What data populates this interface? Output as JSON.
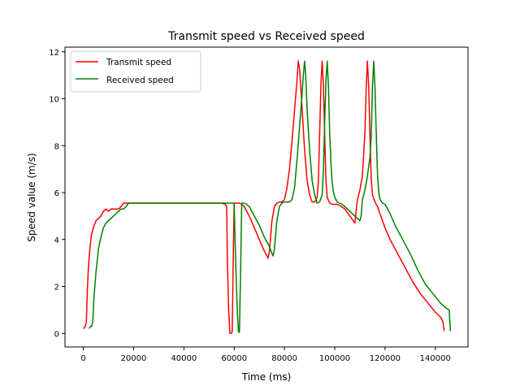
{
  "chart_data": {
    "type": "line",
    "title": "Transmit speed vs Received speed",
    "xlabel": "Time (ms)",
    "ylabel": "Speed value (m/s)",
    "xlim": [
      -7300,
      153000
    ],
    "ylim": [
      -0.58,
      12.2
    ],
    "xticks": [
      0,
      20000,
      40000,
      60000,
      80000,
      100000,
      120000,
      140000
    ],
    "yticks": [
      0,
      2,
      4,
      6,
      8,
      10,
      12
    ],
    "grid": false,
    "legend_position": "top-left",
    "series": [
      {
        "name": "Transmit speed",
        "color": "#ff0000",
        "x": [
          0,
          800,
          1200,
          1600,
          2000,
          2600,
          3200,
          4000,
          5000,
          6000,
          7000,
          8000,
          9000,
          10000,
          11000,
          12000,
          13000,
          14000,
          15000,
          16000,
          17000,
          20000,
          30000,
          40000,
          50000,
          55000,
          56500,
          57000,
          57300,
          57800,
          58300,
          58800,
          59200,
          59600,
          60000,
          61000,
          62000,
          63000,
          64000,
          65000,
          66000,
          68000,
          70000,
          72000,
          73000,
          73500,
          74000,
          75000,
          76000,
          77000,
          78000,
          79000,
          80000,
          81000,
          82000,
          83000,
          84000,
          85000,
          85500,
          86000,
          87000,
          88000,
          89000,
          90000,
          91000,
          92000,
          93000,
          93500,
          94000,
          94500,
          95000,
          95500,
          96000,
          96500,
          97000,
          98000,
          99000,
          100000,
          101000,
          102000,
          104000,
          106000,
          107000,
          108000,
          108500,
          109000,
          110000,
          111000,
          112000,
          112500,
          113000,
          113500,
          114000,
          114500,
          115000,
          116000,
          117000,
          118000,
          119000,
          120000,
          122000,
          125000,
          128000,
          131000,
          134000,
          137000,
          140000,
          142000,
          143000,
          143500
        ],
        "y": [
          0.2,
          0.3,
          0.5,
          1.8,
          2.8,
          3.6,
          4.2,
          4.5,
          4.8,
          4.9,
          5.0,
          5.2,
          5.3,
          5.2,
          5.3,
          5.3,
          5.3,
          5.3,
          5.4,
          5.55,
          5.55,
          5.55,
          5.55,
          5.55,
          5.55,
          5.55,
          5.5,
          5.4,
          3.0,
          1.0,
          0.0,
          0.0,
          0.05,
          3.0,
          5.55,
          5.55,
          5.55,
          5.5,
          5.4,
          5.2,
          5.0,
          4.5,
          4.0,
          3.5,
          3.3,
          3.2,
          3.5,
          4.8,
          5.4,
          5.55,
          5.6,
          5.6,
          5.7,
          6.2,
          7.0,
          8.2,
          9.5,
          10.8,
          11.6,
          11.3,
          9.6,
          7.8,
          6.5,
          5.9,
          5.6,
          5.6,
          5.8,
          6.5,
          8.5,
          10.6,
          11.6,
          10.5,
          8.5,
          6.5,
          5.8,
          5.55,
          5.5,
          5.5,
          5.5,
          5.45,
          5.3,
          5.0,
          4.85,
          4.7,
          5.2,
          5.7,
          6.1,
          6.7,
          8.5,
          10.5,
          11.6,
          10.5,
          8.5,
          6.6,
          5.9,
          5.6,
          5.4,
          5.1,
          4.8,
          4.5,
          4.0,
          3.4,
          2.8,
          2.2,
          1.7,
          1.3,
          0.9,
          0.7,
          0.5,
          0.1
        ]
      },
      {
        "name": "Received speed",
        "color": "#008000",
        "x": [
          2400,
          2800,
          3300,
          3800,
          4200,
          5000,
          6000,
          7000,
          8000,
          9000,
          10000,
          11000,
          12000,
          13000,
          14000,
          15000,
          16000,
          17000,
          18000,
          20000,
          30000,
          40000,
          50000,
          56000,
          57500,
          58500,
          59000,
          59600,
          60000,
          60600,
          61200,
          61700,
          62100,
          62600,
          63000,
          64000,
          65000,
          66000,
          67000,
          68000,
          70000,
          72000,
          74000,
          75000,
          75500,
          76000,
          77000,
          78000,
          79000,
          80000,
          81000,
          82000,
          83000,
          84000,
          85000,
          86000,
          87000,
          87500,
          88000,
          88500,
          89000,
          90000,
          91000,
          92000,
          93000,
          94000,
          95000,
          95500,
          96000,
          96500,
          97000,
          97500,
          98000,
          98500,
          99000,
          99500,
          100000,
          101000,
          102000,
          103000,
          104000,
          106000,
          108000,
          109000,
          110000,
          110500,
          111000,
          112000,
          113000,
          114000,
          114500,
          115000,
          115500,
          116000,
          116500,
          117000,
          117500,
          118000,
          119000,
          120000,
          121000,
          122000,
          124000,
          127000,
          130000,
          133000,
          136000,
          139000,
          142000,
          144000,
          145500,
          146000
        ],
        "y": [
          0.2,
          0.3,
          0.3,
          0.5,
          1.5,
          2.6,
          3.6,
          4.1,
          4.5,
          4.7,
          4.8,
          4.9,
          5.0,
          5.1,
          5.2,
          5.3,
          5.3,
          5.4,
          5.55,
          5.55,
          5.55,
          5.55,
          5.55,
          5.55,
          5.55,
          5.55,
          5.55,
          5.55,
          5.5,
          3.0,
          1.0,
          0.05,
          0.05,
          3.0,
          5.55,
          5.55,
          5.5,
          5.4,
          5.2,
          5.0,
          4.6,
          4.1,
          3.7,
          3.4,
          3.3,
          3.6,
          4.8,
          5.4,
          5.55,
          5.6,
          5.6,
          5.6,
          5.7,
          6.2,
          7.4,
          8.8,
          10.2,
          11.0,
          11.6,
          10.9,
          9.5,
          7.8,
          6.5,
          5.9,
          5.55,
          5.6,
          5.9,
          7.0,
          9.0,
          10.8,
          11.6,
          10.5,
          8.5,
          7.2,
          6.4,
          6.0,
          5.8,
          5.6,
          5.55,
          5.5,
          5.4,
          5.2,
          5.0,
          4.9,
          4.8,
          5.0,
          5.7,
          6.1,
          6.7,
          7.5,
          8.4,
          10.5,
          11.6,
          10.5,
          8.5,
          6.8,
          6.0,
          5.7,
          5.55,
          5.5,
          5.3,
          5.1,
          4.6,
          4.0,
          3.4,
          2.7,
          2.1,
          1.7,
          1.3,
          1.1,
          1.0,
          0.1
        ]
      }
    ]
  }
}
